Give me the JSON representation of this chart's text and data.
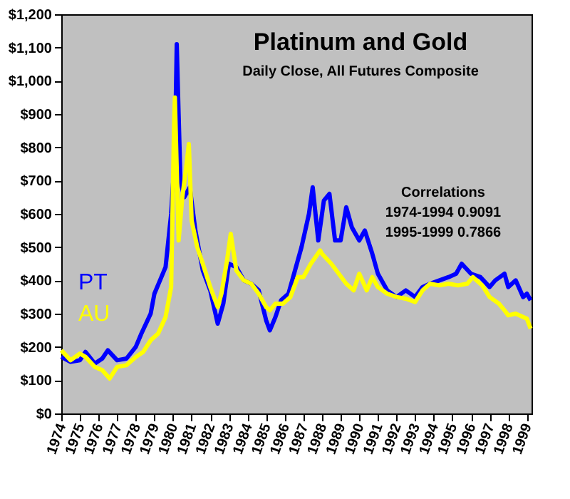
{
  "chart_data": {
    "type": "line",
    "title": "Platinum and Gold",
    "subtitle": "Daily Close, All Futures Composite",
    "annotations": [
      "Correlations",
      "1974-1994  0.9091",
      "1995-1999  0.7866"
    ],
    "xlim": [
      1974,
      1999.25
    ],
    "xticks": [
      1974,
      1975,
      1976,
      1977,
      1978,
      1979,
      1980,
      1981,
      1982,
      1983,
      1984,
      1985,
      1986,
      1987,
      1988,
      1989,
      1990,
      1991,
      1992,
      1993,
      1994,
      1995,
      1996,
      1997,
      1998,
      1999
    ],
    "ylim": [
      0,
      1200
    ],
    "yticks": [
      {
        "value": 0,
        "label": "$0"
      },
      {
        "value": 100,
        "label": "$100"
      },
      {
        "value": 200,
        "label": "$200"
      },
      {
        "value": 300,
        "label": "$300"
      },
      {
        "value": 400,
        "label": "$400"
      },
      {
        "value": 500,
        "label": "$500"
      },
      {
        "value": 600,
        "label": "$600"
      },
      {
        "value": 700,
        "label": "$700"
      },
      {
        "value": 800,
        "label": "$800"
      },
      {
        "value": 900,
        "label": "$900"
      },
      {
        "value": 1000,
        "label": "$1,000"
      },
      {
        "value": 1100,
        "label": "$1,100"
      },
      {
        "value": 1200,
        "label": "$1,200"
      }
    ],
    "grid": false,
    "legend": "left",
    "marker": "none",
    "line_style": "solid",
    "series": [
      {
        "name": "PT",
        "color": "#0000ff",
        "x": [
          1974.0,
          1974.5,
          1975.0,
          1975.3,
          1975.8,
          1976.2,
          1976.5,
          1977.0,
          1977.5,
          1978.0,
          1978.3,
          1978.8,
          1979.0,
          1979.3,
          1979.6,
          1979.9,
          1980.1,
          1980.2,
          1980.3,
          1980.4,
          1980.6,
          1980.9,
          1981.2,
          1981.6,
          1982.0,
          1982.4,
          1982.7,
          1983.0,
          1983.4,
          1983.8,
          1984.2,
          1984.6,
          1985.0,
          1985.2,
          1985.5,
          1985.8,
          1986.2,
          1986.6,
          1986.9,
          1987.3,
          1987.5,
          1987.8,
          1988.1,
          1988.4,
          1988.7,
          1989.0,
          1989.3,
          1989.6,
          1990.0,
          1990.3,
          1990.7,
          1991.0,
          1991.5,
          1992.0,
          1992.5,
          1993.0,
          1993.4,
          1993.8,
          1994.3,
          1994.8,
          1995.2,
          1995.5,
          1996.0,
          1996.5,
          1997.0,
          1997.3,
          1997.8,
          1998.0,
          1998.4,
          1998.8,
          1999.0,
          1999.2
        ],
        "values": [
          170,
          155,
          160,
          185,
          150,
          165,
          190,
          160,
          165,
          200,
          240,
          300,
          360,
          400,
          440,
          600,
          780,
          1110,
          900,
          700,
          650,
          680,
          550,
          430,
          370,
          270,
          330,
          450,
          440,
          400,
          390,
          370,
          280,
          250,
          290,
          340,
          360,
          440,
          500,
          600,
          680,
          520,
          640,
          660,
          520,
          520,
          620,
          560,
          520,
          550,
          480,
          420,
          370,
          350,
          370,
          350,
          380,
          390,
          400,
          410,
          420,
          450,
          420,
          410,
          380,
          400,
          420,
          380,
          400,
          350,
          360,
          340
        ]
      },
      {
        "name": "AU",
        "color": "#ffff00",
        "x": [
          1974.0,
          1974.5,
          1975.0,
          1975.3,
          1975.8,
          1976.2,
          1976.6,
          1977.0,
          1977.5,
          1978.0,
          1978.4,
          1978.8,
          1979.2,
          1979.6,
          1979.9,
          1980.05,
          1980.1,
          1980.3,
          1980.5,
          1980.75,
          1980.85,
          1981.0,
          1981.3,
          1981.6,
          1982.0,
          1982.4,
          1982.6,
          1982.9,
          1983.1,
          1983.4,
          1983.8,
          1984.2,
          1984.6,
          1985.0,
          1985.2,
          1985.5,
          1985.9,
          1986.3,
          1986.7,
          1987.0,
          1987.4,
          1987.9,
          1988.0,
          1988.5,
          1988.9,
          1989.3,
          1989.7,
          1990.0,
          1990.4,
          1990.7,
          1991.0,
          1991.5,
          1992.0,
          1992.5,
          1993.0,
          1993.4,
          1993.8,
          1994.3,
          1994.8,
          1995.3,
          1995.8,
          1996.1,
          1996.6,
          1997.0,
          1997.5,
          1997.8,
          1998.0,
          1998.4,
          1998.8,
          1999.0,
          1999.2
        ],
        "values": [
          190,
          160,
          180,
          170,
          140,
          130,
          105,
          140,
          145,
          170,
          185,
          220,
          240,
          290,
          380,
          850,
          950,
          520,
          650,
          760,
          810,
          580,
          500,
          450,
          380,
          320,
          360,
          460,
          540,
          430,
          400,
          390,
          360,
          320,
          310,
          330,
          330,
          350,
          410,
          410,
          450,
          490,
          480,
          450,
          420,
          390,
          370,
          420,
          370,
          410,
          380,
          360,
          350,
          345,
          335,
          370,
          390,
          385,
          390,
          385,
          390,
          410,
          385,
          350,
          330,
          310,
          295,
          300,
          290,
          285,
          255
        ]
      }
    ]
  }
}
